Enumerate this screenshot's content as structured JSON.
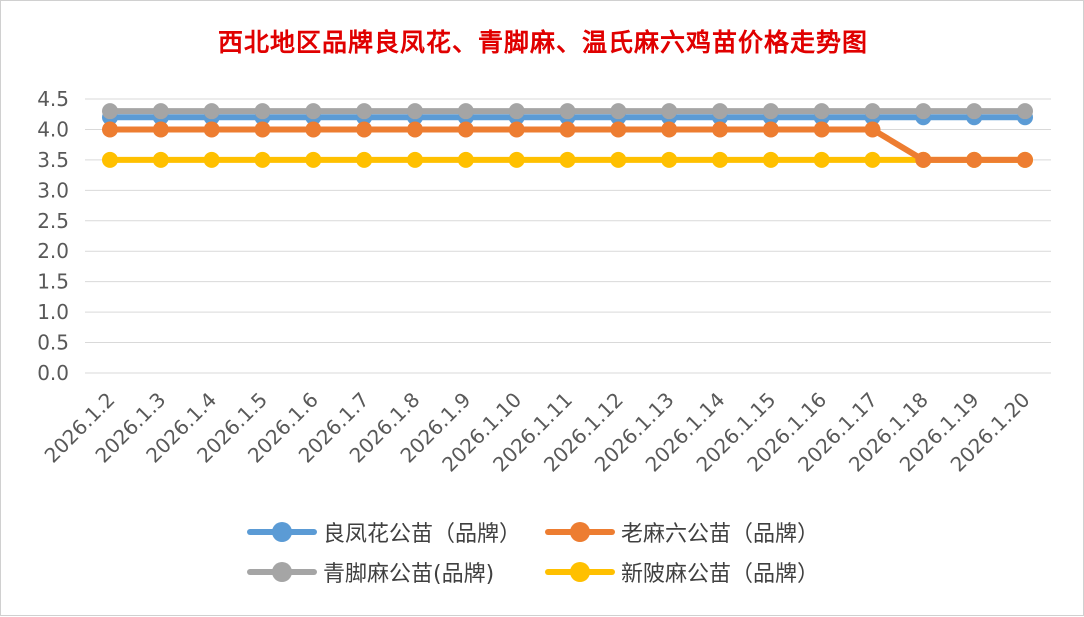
{
  "chart_data": {
    "type": "line",
    "title": "西北地区品牌良凤花、青脚麻、温氏麻六鸡苗价格走势图",
    "categories": [
      "2026.1.2",
      "2026.1.3",
      "2026.1.4",
      "2026.1.5",
      "2026.1.6",
      "2026.1.7",
      "2026.1.8",
      "2026.1.9",
      "2026.1.10",
      "2026.1.11",
      "2026.1.12",
      "2026.1.13",
      "2026.1.14",
      "2026.1.15",
      "2026.1.16",
      "2026.1.17",
      "2026.1.18",
      "2026.1.19",
      "2026.1.20"
    ],
    "ylim": [
      0,
      4.5
    ],
    "yticks": [
      "0.0",
      "0.5",
      "1.0",
      "1.5",
      "2.0",
      "2.5",
      "3.0",
      "3.5",
      "4.0",
      "4.5"
    ],
    "grid": true,
    "legend_position": "bottom",
    "series": [
      {
        "name": "良凤花公苗（品牌）",
        "color": "#5b9bd5",
        "values": [
          4.2,
          4.2,
          4.2,
          4.2,
          4.2,
          4.2,
          4.2,
          4.2,
          4.2,
          4.2,
          4.2,
          4.2,
          4.2,
          4.2,
          4.2,
          4.2,
          4.2,
          4.2,
          4.2
        ]
      },
      {
        "name": "老麻六公苗（品牌）",
        "color": "#ed7d31",
        "values": [
          4.0,
          4.0,
          4.0,
          4.0,
          4.0,
          4.0,
          4.0,
          4.0,
          4.0,
          4.0,
          4.0,
          4.0,
          4.0,
          4.0,
          4.0,
          4.0,
          3.5,
          3.5,
          3.5
        ]
      },
      {
        "name": "青脚麻公苗(品牌)",
        "color": "#a5a5a5",
        "values": [
          4.3,
          4.3,
          4.3,
          4.3,
          4.3,
          4.3,
          4.3,
          4.3,
          4.3,
          4.3,
          4.3,
          4.3,
          4.3,
          4.3,
          4.3,
          4.3,
          4.3,
          4.3,
          4.3
        ]
      },
      {
        "name": "新陂麻公苗（品牌）",
        "color": "#ffc000",
        "values": [
          3.5,
          3.5,
          3.5,
          3.5,
          3.5,
          3.5,
          3.5,
          3.5,
          3.5,
          3.5,
          3.5,
          3.5,
          3.5,
          3.5,
          3.5,
          3.5,
          3.5,
          3.5,
          3.5
        ]
      }
    ]
  },
  "colors": {
    "title": "#e00000",
    "grid": "#d9d9d9",
    "axis_text": "#595959",
    "legend_text": "#404040",
    "border": "#d0d0d0"
  }
}
